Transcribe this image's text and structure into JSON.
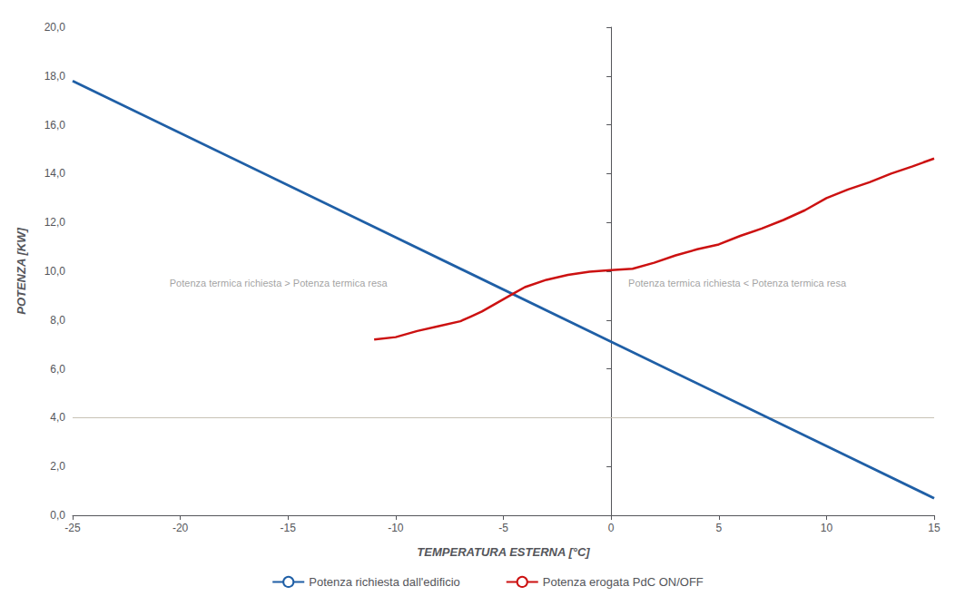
{
  "chart_data": {
    "type": "line",
    "xlabel": "TEMPERATURA ESTERNA [°C]",
    "ylabel": "POTENZA [KW]",
    "xlim": [
      -25,
      15
    ],
    "ylim": [
      0,
      20
    ],
    "xticks": [
      -25,
      -20,
      -15,
      -10,
      -5,
      0,
      5,
      10,
      15
    ],
    "yticks": [
      {
        "value": 0.0,
        "label": "0,0"
      },
      {
        "value": 2.0,
        "label": "2,0"
      },
      {
        "value": 4.0,
        "label": "4,0"
      },
      {
        "value": 6.0,
        "label": "6,0"
      },
      {
        "value": 8.0,
        "label": "8,0"
      },
      {
        "value": 10.0,
        "label": "10,0"
      },
      {
        "value": 12.0,
        "label": "12,0"
      },
      {
        "value": 14.0,
        "label": "14,0"
      },
      {
        "value": 16.0,
        "label": "16,0"
      },
      {
        "value": 18.0,
        "label": "18,0"
      },
      {
        "value": 20.0,
        "label": "20,0"
      }
    ],
    "grid": false,
    "legend": "bottom",
    "series": [
      {
        "name": "Potenza richiesta dall'edificio",
        "color": "#1f5fa6",
        "x": [
          -25,
          15
        ],
        "values": [
          17.8,
          0.7
        ]
      },
      {
        "name": "Potenza erogata PdC ON/OFF",
        "color": "#cc1111",
        "x": [
          -11,
          -10,
          -9,
          -8,
          -7,
          -6.5,
          -6,
          -5.5,
          -5,
          -4.5,
          -4,
          -3,
          -2,
          -1,
          0,
          1,
          2,
          3,
          4,
          5,
          6,
          7,
          8,
          9,
          10,
          11,
          12,
          13,
          14,
          15
        ],
        "values": [
          7.2,
          7.3,
          7.55,
          7.75,
          7.95,
          8.15,
          8.35,
          8.6,
          8.85,
          9.1,
          9.35,
          9.65,
          9.85,
          9.98,
          10.05,
          10.1,
          10.35,
          10.65,
          10.9,
          11.1,
          11.45,
          11.75,
          12.1,
          12.5,
          13.0,
          13.35,
          13.65,
          14.0,
          14.3,
          14.62
        ]
      }
    ],
    "reference_lines": [
      {
        "y": 4.0,
        "color": "#c8c2b6"
      }
    ],
    "annotations": [
      {
        "text": "Potenza termica richiesta > Potenza termica resa",
        "x": -20.5,
        "y": 9.5
      },
      {
        "text": "Potenza termica richiesta < Potenza termica resa",
        "x": 0.8,
        "y": 9.5
      }
    ]
  }
}
